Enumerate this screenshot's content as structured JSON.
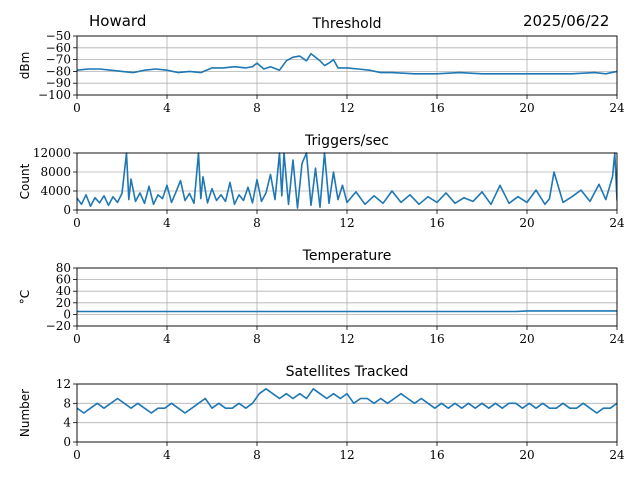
{
  "header": {
    "station": "Howard",
    "date": "2025/06/22"
  },
  "colors": {
    "line": "#1f77b4",
    "grid": "#b0b0b0"
  },
  "chart_data": [
    {
      "type": "line",
      "title": "Threshold",
      "ylabel": "dBm",
      "xlim": [
        0,
        24
      ],
      "ylim": [
        -100,
        -50
      ],
      "xticks": [
        0,
        4,
        8,
        12,
        16,
        20,
        24
      ],
      "yticks": [
        -100,
        -90,
        -80,
        -70,
        -60,
        -50
      ],
      "ytick_labels": [
        "−100",
        "−90",
        "−80",
        "−70",
        "−60",
        "−50"
      ],
      "series": [
        {
          "x": [
            0,
            0.5,
            1,
            1.5,
            2,
            2.5,
            3,
            3.5,
            4,
            4.5,
            5,
            5.5,
            6,
            6.5,
            7,
            7.5,
            7.8,
            8,
            8.3,
            8.6,
            9,
            9.3,
            9.6,
            9.9,
            10.2,
            10.4,
            10.6,
            10.8,
            11,
            11.2,
            11.4,
            11.6,
            12,
            12.5,
            13,
            13.5,
            14,
            15,
            16,
            17,
            18,
            19,
            20,
            21,
            22,
            23,
            23.5,
            24
          ],
          "y": [
            -79,
            -78,
            -78,
            -79,
            -80,
            -81,
            -79,
            -78,
            -79,
            -81,
            -80,
            -81,
            -77,
            -77,
            -76,
            -77,
            -76,
            -73,
            -78,
            -76,
            -79,
            -71,
            -68,
            -67,
            -71,
            -65,
            -68,
            -71,
            -75,
            -73,
            -70,
            -77,
            -77,
            -78,
            -79,
            -81,
            -81,
            -82,
            -82,
            -81,
            -82,
            -82,
            -82,
            -82,
            -82,
            -81,
            -82,
            -80
          ]
        }
      ]
    },
    {
      "type": "line",
      "title": "Triggers/sec",
      "ylabel": "Count",
      "xlim": [
        0,
        24
      ],
      "ylim": [
        0,
        12000
      ],
      "xticks": [
        0,
        4,
        8,
        12,
        16,
        20,
        24
      ],
      "yticks": [
        0,
        4000,
        8000,
        12000
      ],
      "ytick_labels": [
        "0",
        "4000",
        "8000",
        "12000"
      ],
      "series": [
        {
          "x": [
            0,
            0.2,
            0.4,
            0.6,
            0.8,
            1,
            1.2,
            1.4,
            1.6,
            1.8,
            2,
            2.2,
            2.3,
            2.4,
            2.6,
            2.8,
            3,
            3.2,
            3.4,
            3.6,
            3.8,
            4,
            4.2,
            4.4,
            4.6,
            4.8,
            5,
            5.2,
            5.4,
            5.5,
            5.6,
            5.8,
            6,
            6.2,
            6.4,
            6.6,
            6.8,
            7,
            7.2,
            7.4,
            7.6,
            7.8,
            8,
            8.2,
            8.4,
            8.6,
            8.8,
            9,
            9.1,
            9.2,
            9.4,
            9.6,
            9.8,
            10,
            10.2,
            10.4,
            10.6,
            10.8,
            11,
            11.2,
            11.4,
            11.6,
            11.8,
            12,
            12.4,
            12.8,
            13.2,
            13.6,
            14,
            14.4,
            14.8,
            15.2,
            15.6,
            16,
            16.4,
            16.8,
            17.2,
            17.6,
            18,
            18.4,
            18.8,
            19.2,
            19.6,
            20,
            20.4,
            20.8,
            21,
            21.2,
            21.6,
            22,
            22.4,
            22.8,
            23.2,
            23.5,
            23.8,
            23.9,
            24
          ],
          "y": [
            2500,
            1200,
            3200,
            800,
            2600,
            1500,
            3000,
            1000,
            2800,
            1600,
            3500,
            12000,
            2200,
            6500,
            1800,
            3600,
            1400,
            5000,
            1200,
            3200,
            2400,
            5200,
            1600,
            3800,
            6200,
            2000,
            3500,
            1400,
            12000,
            2400,
            7000,
            1500,
            4500,
            2000,
            3200,
            1800,
            5800,
            1200,
            3200,
            2000,
            4800,
            1500,
            6400,
            1800,
            3600,
            7500,
            2200,
            12000,
            3000,
            12000,
            1200,
            10500,
            400,
            9800,
            12000,
            1000,
            8800,
            600,
            12000,
            1400,
            8000,
            2200,
            5200,
            1600,
            3800,
            1200,
            3000,
            1400,
            4000,
            1600,
            3200,
            1200,
            2800,
            1600,
            3600,
            1400,
            2600,
            1800,
            3800,
            1200,
            5200,
            1400,
            2800,
            1600,
            4200,
            1200,
            2400,
            8000,
            1600,
            2800,
            4200,
            1800,
            5400,
            2200,
            7000,
            12000,
            2000
          ]
        }
      ]
    },
    {
      "type": "line",
      "title": "Temperature",
      "ylabel": "°C",
      "xlim": [
        0,
        24
      ],
      "ylim": [
        -20,
        80
      ],
      "xticks": [
        0,
        4,
        8,
        12,
        16,
        20,
        24
      ],
      "yticks": [
        -20,
        0,
        20,
        40,
        60,
        80
      ],
      "ytick_labels": [
        "−20",
        "0",
        "20",
        "40",
        "60",
        "80"
      ],
      "series": [
        {
          "x": [
            0,
            2,
            4,
            8,
            12,
            16,
            19.5,
            20,
            24
          ],
          "y": [
            5,
            5,
            5,
            5,
            5,
            5,
            5,
            6,
            6
          ]
        }
      ]
    },
    {
      "type": "line",
      "title": "Satellites Tracked",
      "ylabel": "Number",
      "xlim": [
        0,
        24
      ],
      "ylim": [
        0,
        12
      ],
      "xticks": [
        0,
        4,
        8,
        12,
        16,
        20,
        24
      ],
      "yticks": [
        0,
        4,
        8,
        12
      ],
      "ytick_labels": [
        "0",
        "4",
        "8",
        "12"
      ],
      "series": [
        {
          "x": [
            0,
            0.3,
            0.6,
            0.9,
            1.2,
            1.5,
            1.8,
            2.1,
            2.4,
            2.7,
            3,
            3.3,
            3.6,
            3.9,
            4.2,
            4.5,
            4.8,
            5.1,
            5.4,
            5.7,
            6,
            6.3,
            6.6,
            6.9,
            7.2,
            7.5,
            7.8,
            8.1,
            8.4,
            8.7,
            9,
            9.3,
            9.6,
            9.9,
            10.2,
            10.5,
            10.8,
            11.1,
            11.4,
            11.7,
            12,
            12.3,
            12.6,
            12.9,
            13.2,
            13.5,
            13.8,
            14.1,
            14.4,
            14.7,
            15,
            15.3,
            15.6,
            15.9,
            16.2,
            16.5,
            16.8,
            17.1,
            17.4,
            17.7,
            18,
            18.3,
            18.6,
            18.9,
            19.2,
            19.5,
            19.8,
            20.1,
            20.4,
            20.7,
            21,
            21.3,
            21.6,
            21.9,
            22.2,
            22.5,
            22.8,
            23.1,
            23.4,
            23.7,
            24
          ],
          "y": [
            7,
            6,
            7,
            8,
            7,
            8,
            9,
            8,
            7,
            8,
            7,
            6,
            7,
            7,
            8,
            7,
            6,
            7,
            8,
            9,
            7,
            8,
            7,
            7,
            8,
            7,
            8,
            10,
            11,
            10,
            9,
            10,
            9,
            10,
            9,
            11,
            10,
            9,
            10,
            9,
            10,
            8,
            9,
            9,
            8,
            9,
            8,
            9,
            10,
            9,
            8,
            9,
            8,
            7,
            8,
            7,
            8,
            7,
            8,
            7,
            8,
            7,
            8,
            7,
            8,
            8,
            7,
            8,
            7,
            8,
            7,
            7,
            8,
            7,
            7,
            8,
            7,
            6,
            7,
            7,
            8
          ]
        }
      ]
    }
  ]
}
